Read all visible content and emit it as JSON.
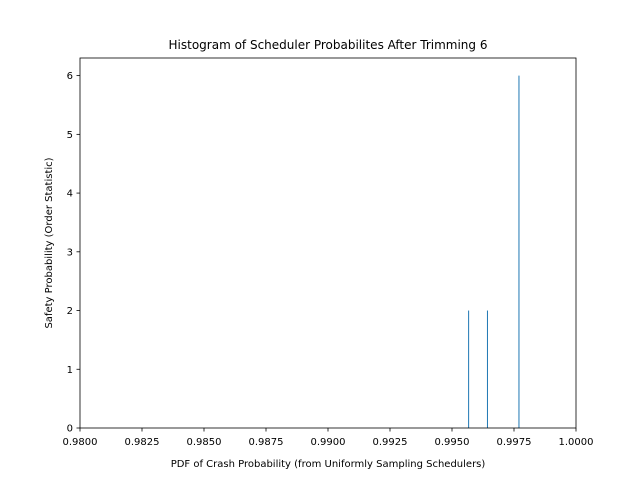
{
  "chart_data": {
    "type": "bar",
    "title": "Histogram of Scheduler Probabilites After Trimming 6",
    "xlabel": "PDF of Crash Probability (from Uniformly Sampling Schedulers)",
    "ylabel": "Safety Probability (Order Statistic)",
    "xlim": [
      0.98,
      1.0
    ],
    "ylim": [
      0,
      6.3
    ],
    "xticks": [
      0.98,
      0.9825,
      0.985,
      0.9875,
      0.99,
      0.9925,
      0.995,
      0.9975,
      1.0
    ],
    "xtick_labels": [
      "0.9800",
      "0.9825",
      "0.9850",
      "0.9875",
      "0.9900",
      "0.9925",
      "0.9950",
      "0.9975",
      "1.0000"
    ],
    "yticks": [
      0,
      1,
      2,
      3,
      4,
      5,
      6
    ],
    "ytick_labels": [
      "0",
      "1",
      "2",
      "3",
      "4",
      "5",
      "6"
    ],
    "bars": [
      {
        "x": 0.99567,
        "value": 2
      },
      {
        "x": 0.99643,
        "value": 2
      },
      {
        "x": 0.9977,
        "value": 6
      }
    ],
    "bar_color": "#1f77b4",
    "grid": false,
    "legend": "none"
  }
}
